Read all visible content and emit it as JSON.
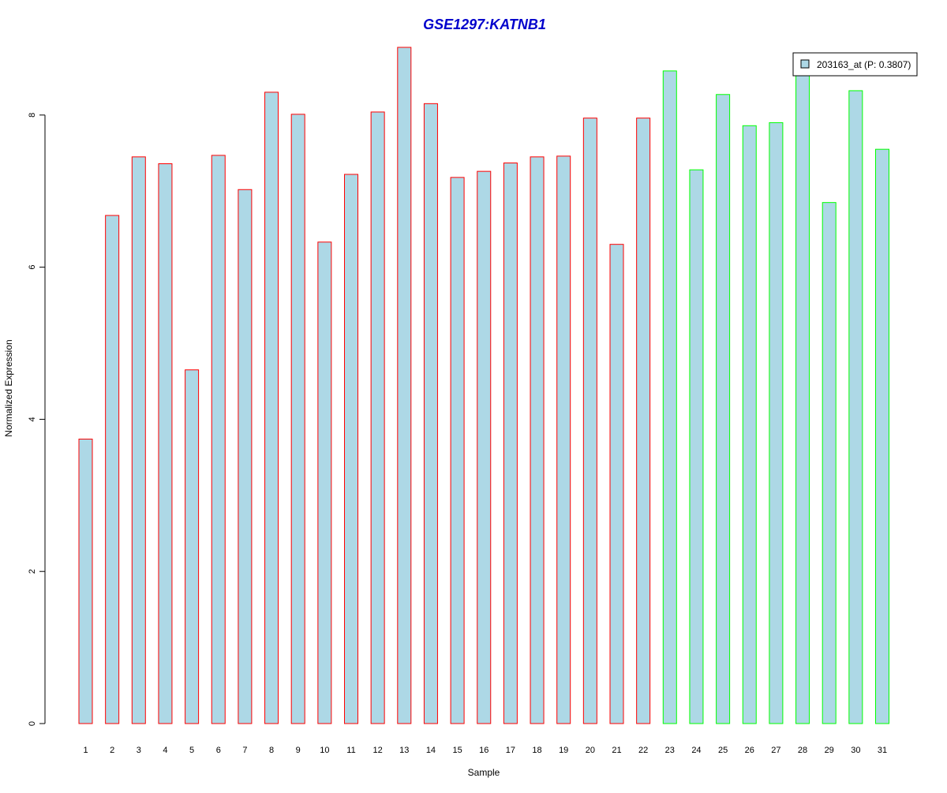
{
  "chart_data": {
    "type": "bar",
    "title": "GSE1297:KATNB1",
    "xlabel": "Sample",
    "ylabel": "Normalized Expression",
    "ylim": [
      0,
      8.9
    ],
    "yticks": [
      0,
      2,
      4,
      6,
      8
    ],
    "categories": [
      "1",
      "2",
      "3",
      "4",
      "5",
      "6",
      "7",
      "8",
      "9",
      "10",
      "11",
      "12",
      "13",
      "14",
      "15",
      "16",
      "17",
      "18",
      "19",
      "20",
      "21",
      "22",
      "23",
      "24",
      "25",
      "26",
      "27",
      "28",
      "29",
      "30",
      "31"
    ],
    "series": [
      {
        "name": "203163_at (P: 0.3807)",
        "values": [
          3.74,
          6.68,
          7.45,
          7.36,
          4.65,
          7.47,
          7.02,
          8.3,
          8.01,
          6.33,
          7.22,
          8.04,
          8.89,
          8.15,
          7.18,
          7.26,
          7.37,
          7.45,
          7.46,
          7.96,
          6.3,
          7.96,
          8.58,
          7.28,
          8.27,
          7.86,
          7.9,
          8.57,
          6.85,
          8.32,
          7.55
        ]
      }
    ],
    "groups": [
      {
        "from": 1,
        "to": 22,
        "border_color": "#ff0000"
      },
      {
        "from": 23,
        "to": 31,
        "border_color": "#00ff00"
      }
    ],
    "legend": {
      "placement": "top-right",
      "entries": [
        "203163_at (P: 0.3807)"
      ]
    },
    "grid": false
  },
  "colors": {
    "bar_fill": "#add8e6",
    "title": "#0000cc",
    "axis": "#000000",
    "legend_border": "#000000"
  }
}
